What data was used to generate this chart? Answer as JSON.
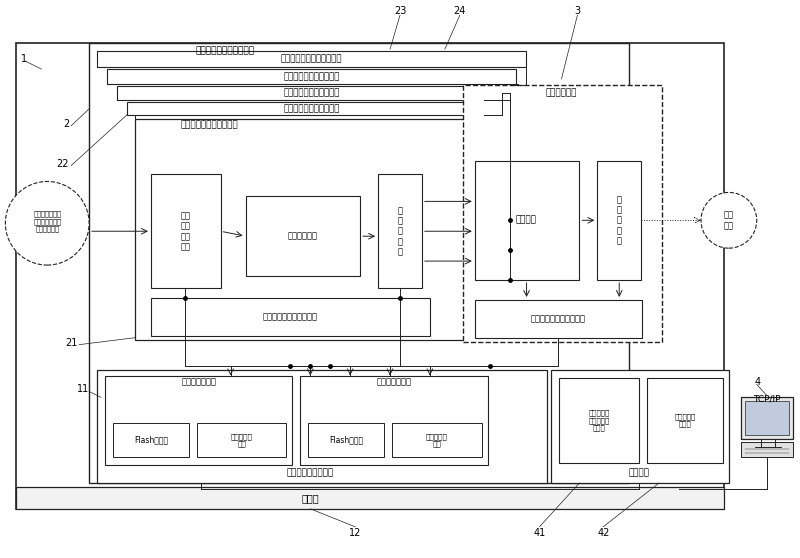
{
  "bg_color": "#ffffff",
  "labels": {
    "main_outer": "安全联锁系统嵌入式设备",
    "quad_redundant": "四冒余可编程逻辑电路模块",
    "fourth_plc": "第四可编程逻辑电路模块",
    "third_plc": "第三可编程逻辑电路模块",
    "second_plc": "第二可编程逻辑电路模块",
    "first_plc": "第一可编程逻辑电路模块",
    "input_logic": "输入\n逻辑\n与存\n储器",
    "control_logic": "控制逻辑电路",
    "output_reg1": "输\n出\n存\n储\n器",
    "buffer_ctrl": "缓冲存储器读写控制电路",
    "vote_module": "表决电路模块",
    "vote_logic": "表决逻辑",
    "output_reg2": "输\n出\n存\n储\n器",
    "buffer_rw": "缓冲存储器读写控制电路",
    "output_signal": "输出\n信号",
    "redundant_signal": "四冒余的安全联\n锁子系统运行状\n态和故障信号",
    "master_ctrl": "主微控制器模块",
    "flash1": "Flash存储器",
    "eth1": "以太网接口\n电路",
    "slave_ctrl": "从微控制器模块",
    "flash2": "Flash存储器",
    "eth2": "以太网接口\n电路",
    "charge_module": "充电电池及\n充电管理电\n路模块",
    "dc_module": "直流电源电\n路模块",
    "dual_ctrl": "双冒余微控制器模块",
    "power_module": "电源模块",
    "computer": "TCP/IP",
    "ethernet": "以太网",
    "label_1": "1",
    "label_2": "2",
    "label_3": "3",
    "label_4": "4",
    "label_11": "11",
    "label_12": "12",
    "label_21": "21",
    "label_22": "22",
    "label_23": "23",
    "label_24": "24",
    "label_41": "41",
    "label_42": "42"
  }
}
